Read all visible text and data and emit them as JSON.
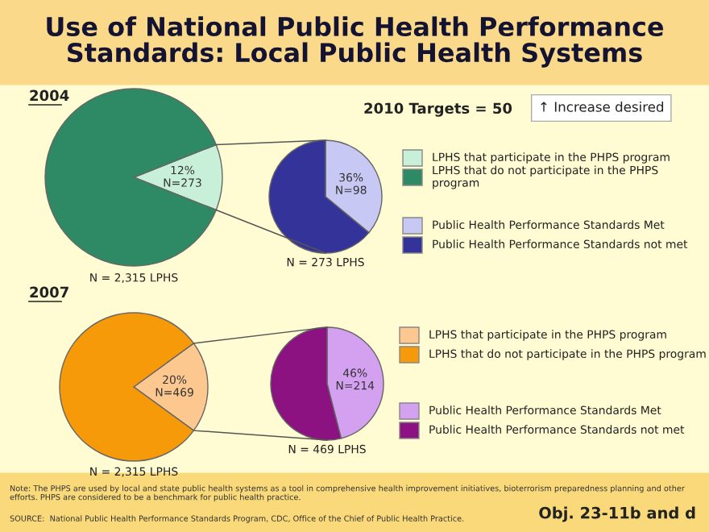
{
  "chart_data": [
    {
      "type": "pie",
      "title": "Use of National Public Health Performance Standards: Local Public Health Systems",
      "subtitle": "2004",
      "xlabel": "N = 2,315 LPHS",
      "categories": [
        "LPHS that participate in the PHPS program",
        "LPHS that do not participate in the PHPS program"
      ],
      "values": [
        12,
        88
      ],
      "colors": [
        "#c8f0d8",
        "#2e8a64"
      ],
      "value_labels": [
        "12%\nN=273",
        null
      ],
      "legend": "right",
      "annotations": [
        "2010 Targets = 50",
        "↑ Increase desired"
      ]
    },
    {
      "type": "pie",
      "xlabel": "N = 273 LPHS",
      "categories": [
        "Public Health Performance Standards Met",
        "Public Health Performance Standards not met"
      ],
      "values": [
        36,
        64
      ],
      "colors": [
        "#c8c8f5",
        "#333399"
      ],
      "value_labels": [
        "36%\nN=98",
        null
      ],
      "legend": "right"
    },
    {
      "type": "pie",
      "subtitle": "2007",
      "xlabel": "N = 2,315 LPHS",
      "categories": [
        "LPHS that participate in the PHPS program",
        "LPHS that do not participate in the PHPS program"
      ],
      "values": [
        20,
        80
      ],
      "colors": [
        "#fcc890",
        "#f79a0a"
      ],
      "value_labels": [
        "20%\nN=469",
        null
      ],
      "legend": "right"
    },
    {
      "type": "pie",
      "xlabel": "N = 469 LPHS",
      "categories": [
        "Public Health Performance Standards Met",
        "Public Health Performance Standards not met"
      ],
      "values": [
        46,
        54
      ],
      "colors": [
        "#d4a0f0",
        "#8b1280"
      ],
      "value_labels": [
        "46%\nN=214",
        null
      ],
      "legend": "right",
      "annotations": [
        "Note: The PHPS are used by local and state public health systems as a tool in comprehensive health improvement initiatives, bioterrorism preparedness planning and other efforts. PHPS are considered to be a benchmark for public health practice.",
        "SOURCE:  National Public Health Performance Standards Program, CDC, Office of the Chief of Public Health Practice.",
        "Obj. 23-11b and d"
      ]
    }
  ]
}
